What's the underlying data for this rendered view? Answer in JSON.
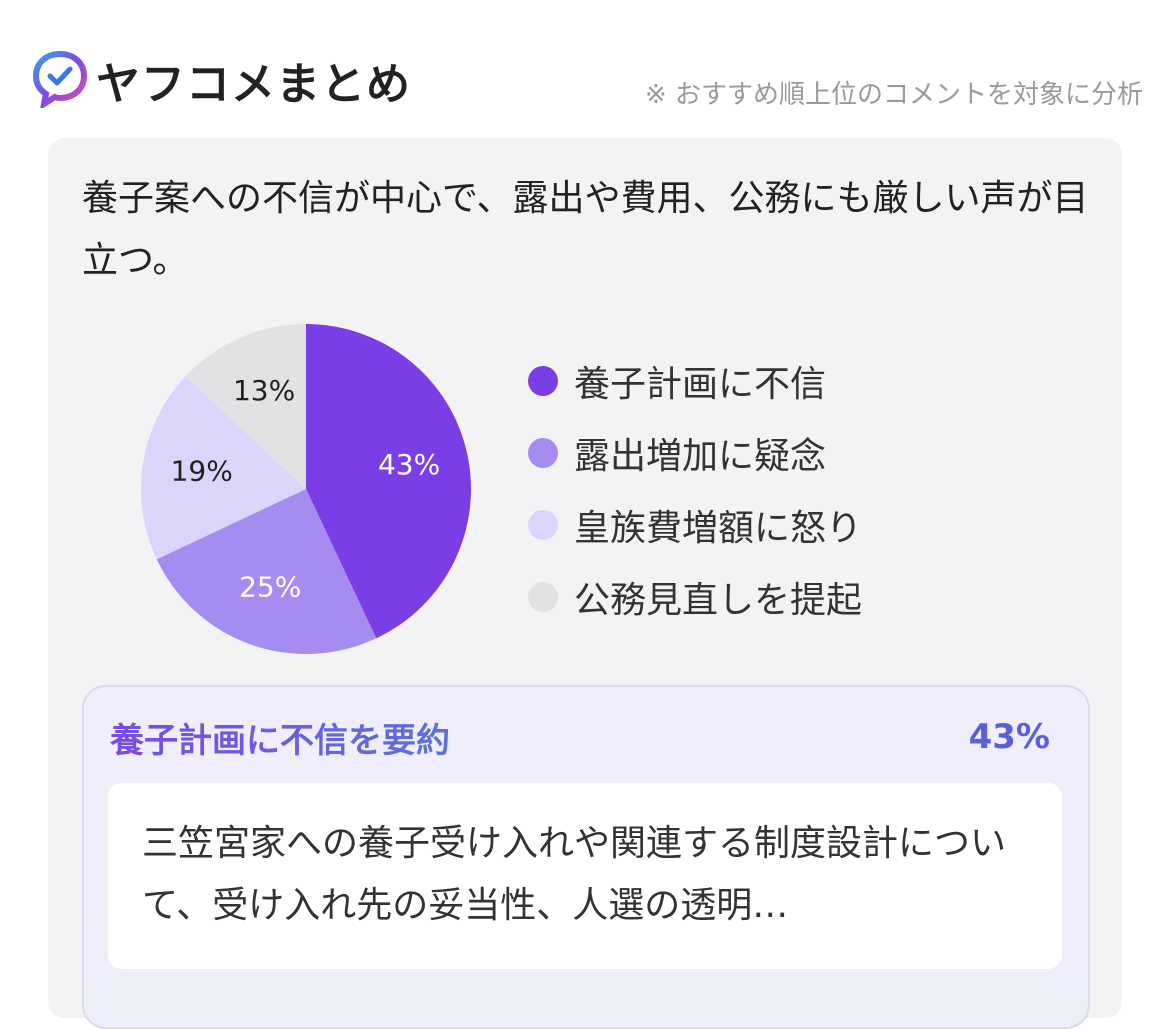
{
  "header": {
    "title": "ヤフコメまとめ",
    "note": "※ おすすめ順上位のコメントを対象に分析"
  },
  "summary": "養子案への不信が中心で、露出や費用、公務にも厳しい声が目立つ。",
  "chart_data": {
    "type": "pie",
    "categories": [
      "養子計画に不信",
      "露出増加に疑念",
      "皇族費増額に怒り",
      "公務見直しを提起"
    ],
    "values": [
      43,
      25,
      19,
      13
    ],
    "value_labels": [
      "43%",
      "25%",
      "19%",
      "13%"
    ],
    "colors": [
      "#7a3de6",
      "#a48cf0",
      "#dcd5fb",
      "#e2e2e4"
    ]
  },
  "card": {
    "title": "養子計画に不信を要約",
    "text": "三笠宮家への養子受け入れや関連する制度設計について、受け入れ先の妥当性、人選の透明…"
  }
}
